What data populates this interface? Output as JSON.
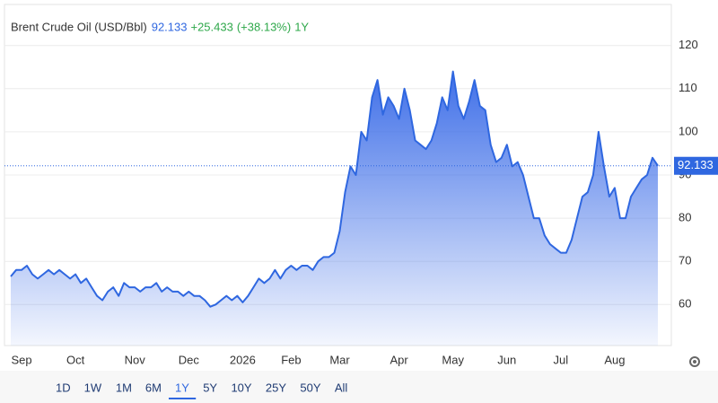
{
  "chart_data": {
    "type": "area",
    "title": "Brent Crude Oil (USD/Bbl)",
    "price": "92.133",
    "change": "+25.433",
    "change_pct": "(+38.13%)",
    "period": "1Y",
    "color": "#2f67e0",
    "grid": true,
    "ylim": [
      50.5,
      129.5
    ],
    "yticks": [
      60,
      70,
      80,
      90,
      100,
      110,
      120
    ],
    "categories": [
      null,
      null,
      "Sep",
      null,
      null,
      null,
      null,
      null,
      null,
      null,
      null,
      null,
      "Oct",
      null,
      null,
      null,
      null,
      null,
      null,
      null,
      null,
      null,
      null,
      "Nov",
      null,
      null,
      null,
      null,
      null,
      null,
      null,
      null,
      null,
      "Dec",
      null,
      null,
      null,
      null,
      null,
      null,
      null,
      null,
      null,
      "2026",
      null,
      null,
      null,
      null,
      null,
      null,
      null,
      null,
      "Feb",
      null,
      null,
      null,
      null,
      null,
      null,
      null,
      null,
      "Mar",
      null,
      null,
      null,
      null,
      null,
      null,
      null,
      null,
      null,
      null,
      "Apr",
      null,
      null,
      null,
      null,
      null,
      null,
      null,
      null,
      null,
      "May",
      null,
      null,
      null,
      null,
      null,
      null,
      null,
      null,
      null,
      "Jun",
      null,
      null,
      null,
      null,
      null,
      null,
      null,
      null,
      null,
      "Jul",
      null,
      null,
      null,
      null,
      null,
      null,
      null,
      null,
      null,
      "Aug",
      null,
      null,
      null,
      null,
      null,
      null,
      null,
      null
    ],
    "values": [
      66.5,
      68,
      68,
      69,
      67,
      66,
      67,
      68,
      67,
      68,
      67,
      66,
      67,
      65,
      66,
      64,
      62,
      61,
      63,
      64,
      62,
      65,
      64,
      64,
      63,
      64,
      64,
      65,
      63,
      64,
      63,
      63,
      62,
      63,
      62,
      62,
      61,
      59.5,
      60,
      61,
      62,
      61,
      62,
      60.5,
      62,
      64,
      66,
      65,
      66,
      68,
      66,
      68,
      69,
      68,
      69,
      69,
      68,
      70,
      71,
      71,
      72,
      77,
      86,
      92,
      90,
      100,
      98,
      108,
      112,
      104,
      108,
      106,
      103,
      110,
      105,
      98,
      97,
      96,
      98,
      102,
      108,
      105,
      114,
      106,
      103,
      107,
      112,
      106,
      105,
      97,
      93,
      94,
      97,
      92,
      93,
      90,
      85,
      80,
      80,
      76,
      74,
      73,
      72,
      72,
      75,
      80,
      85,
      86,
      90,
      100,
      92,
      85,
      87,
      80,
      80,
      85,
      87,
      89,
      90,
      94,
      92.133
    ],
    "ranges": [
      "1D",
      "1W",
      "1M",
      "6M",
      "1Y",
      "5Y",
      "10Y",
      "25Y",
      "50Y",
      "All"
    ]
  }
}
